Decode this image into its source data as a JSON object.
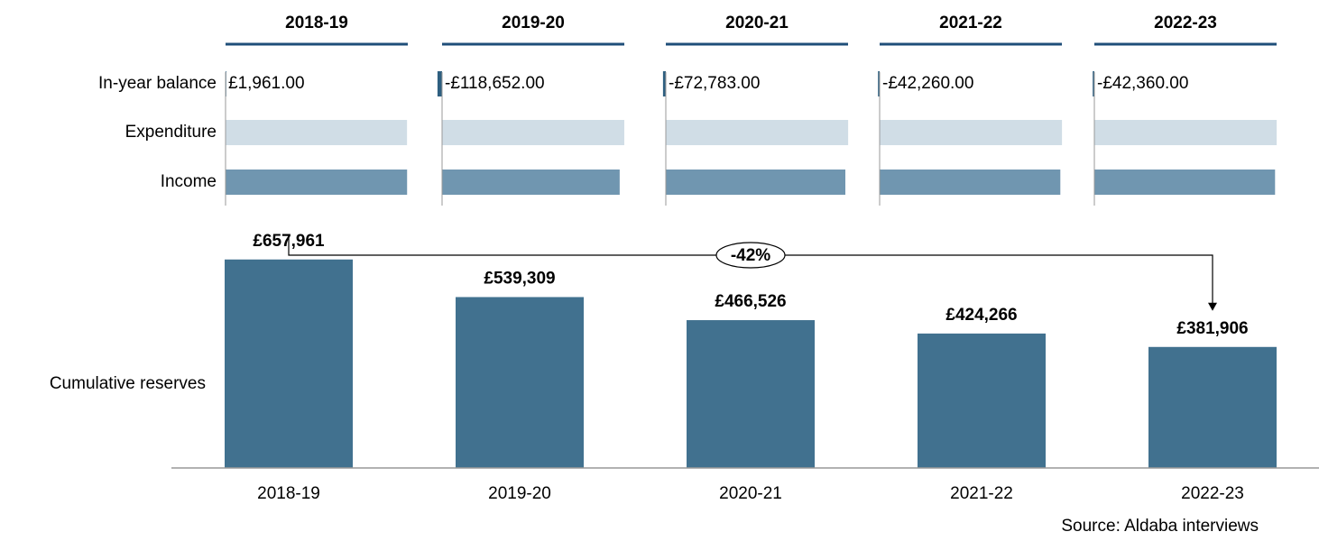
{
  "chart_data": [
    {
      "type": "multibar",
      "categories": [
        "2018-19",
        "2019-20",
        "2020-21",
        "2021-22",
        "2022-23"
      ],
      "series": [
        {
          "name": "In-year balance",
          "color": "#2e5f80",
          "values": [
            1961,
            -118652,
            -72783,
            -42260,
            -42360
          ],
          "value_labels": [
            "£1,961.00",
            "-£118,652.00",
            "-£72,783.00",
            "-£42,260.00",
            "-£42,360.00"
          ]
        },
        {
          "name": "Expenditure",
          "color": "#d0dde6",
          "values": [
            4700000,
            4718652,
            4722783,
            4722260,
            4722360
          ]
        },
        {
          "name": "Income",
          "color": "#7096b0",
          "values": [
            4701961,
            4600000,
            4650000,
            4680000,
            4680000
          ]
        }
      ],
      "xlim": [
        0,
        4720000
      ]
    },
    {
      "type": "bar",
      "ylabel": "Cumulative reserves",
      "categories": [
        "2018-19",
        "2019-20",
        "2020-21",
        "2021-22",
        "2022-23"
      ],
      "values": [
        657961,
        539309,
        466526,
        424266,
        381906
      ],
      "value_labels": [
        "£657,961",
        "£539,309",
        "£466,526",
        "£424,266",
        "£381,906"
      ],
      "color": "#41718f",
      "ylim": [
        0,
        700000
      ],
      "annotation": "-42%",
      "source": "Source: Aldaba interviews"
    }
  ]
}
